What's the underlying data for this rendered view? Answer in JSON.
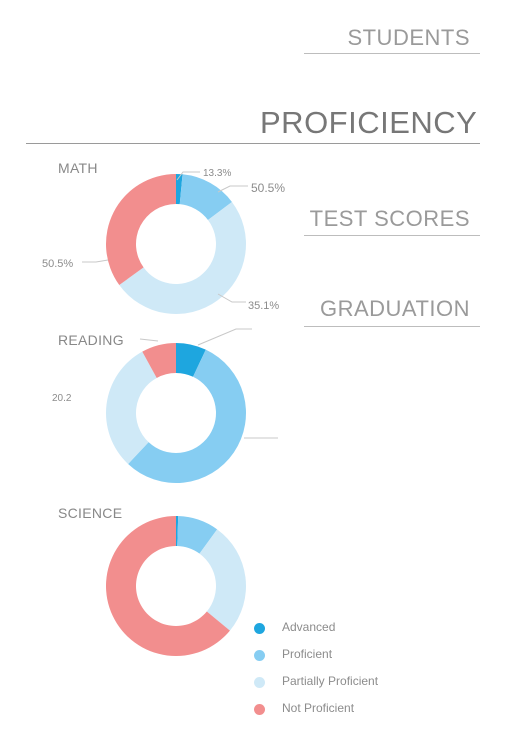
{
  "nav": {
    "students": "STUDENTS",
    "proficiency": "PROFICIENCY",
    "test_scores": "TEST SCORES",
    "graduation": "GRADUATION"
  },
  "colors": {
    "advanced": "#1ea6df",
    "proficient": "#86cdf2",
    "partially_proficient": "#cfe9f7",
    "not_proficient": "#f28e8e"
  },
  "chart_data": [
    {
      "type": "pie",
      "title": "MATH",
      "categories": [
        "Advanced",
        "Proficient",
        "Partially Proficient",
        "Not Proficient"
      ],
      "values": [
        1.5,
        13.3,
        50.5,
        35.1
      ],
      "labels": [
        "13.3%",
        "50.5%",
        "35.1%",
        "50.5%"
      ]
    },
    {
      "type": "pie",
      "title": "READING",
      "categories": [
        "Advanced",
        "Proficient",
        "Partially Proficient",
        "Not Proficient"
      ],
      "values": [
        7,
        55,
        30,
        8
      ],
      "labels": [
        "20.2"
      ]
    },
    {
      "type": "pie",
      "title": "SCIENCE",
      "categories": [
        "Advanced",
        "Proficient",
        "Partially Proficient",
        "Not Proficient"
      ],
      "values": [
        0.5,
        9.5,
        26,
        64
      ],
      "labels": []
    }
  ],
  "legend": [
    "Advanced",
    "Proficient",
    "Partially Proficient",
    "Not Proficient"
  ]
}
